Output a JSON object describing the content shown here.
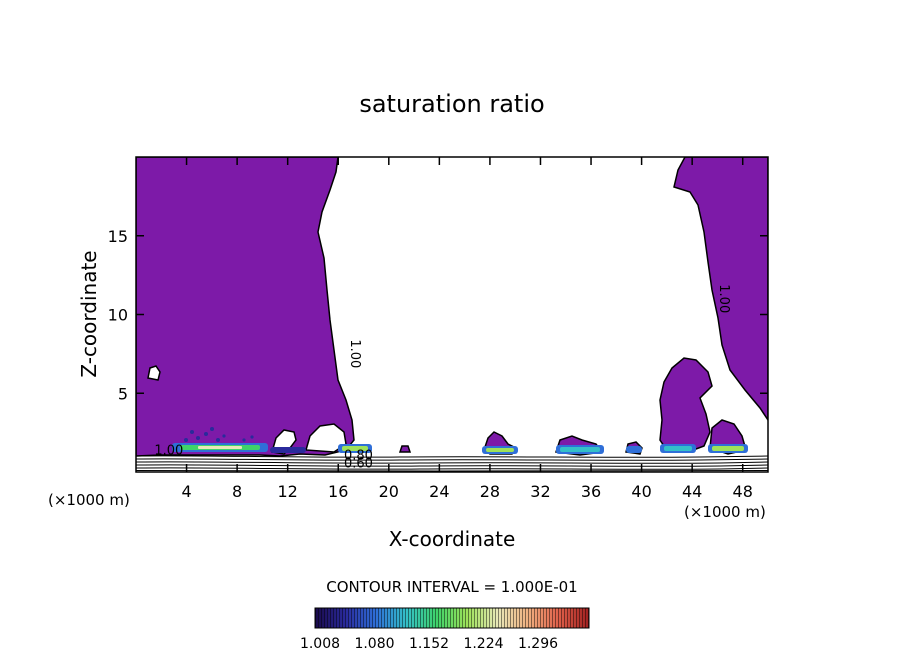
{
  "chart_data": {
    "type": "contour",
    "title": "saturation ratio",
    "xlabel": "X-coordinate",
    "ylabel": "Z-coordinate",
    "x_unit": "(×1000 m)",
    "xlim": [
      0,
      50
    ],
    "ylim": [
      0,
      20
    ],
    "x_ticks": [
      4,
      8,
      12,
      16,
      20,
      24,
      28,
      32,
      36,
      40,
      44,
      48
    ],
    "y_ticks": [
      5,
      10,
      15
    ],
    "contour_labels": [
      {
        "text": "1.00",
        "x": 17.0,
        "z": 7.5,
        "rotation": 90
      },
      {
        "text": "1.00",
        "x": 46.2,
        "z": 11.0,
        "rotation": 90
      },
      {
        "text": "1.00",
        "x": 2.6,
        "z": 1.1,
        "rotation": 0
      },
      {
        "text": "0.80",
        "x": 17.6,
        "z": 0.8,
        "rotation": 0
      },
      {
        "text": "0.60",
        "x": 17.6,
        "z": 0.3,
        "rotation": 0
      }
    ],
    "supersaturated_region_color": "#7d1aa8",
    "contour_interval_text": "CONTOUR INTERVAL = 1.000E-01",
    "colorbar": {
      "ticks": [
        "1.008",
        "1.080",
        "1.152",
        "1.224",
        "1.296"
      ],
      "colormap": [
        "#1a0a4a",
        "#2a2a9c",
        "#2f6fd8",
        "#34c0c8",
        "#3fd36a",
        "#9ee25a",
        "#e8e8b8",
        "#f0b080",
        "#e0604a",
        "#a02020"
      ]
    }
  }
}
